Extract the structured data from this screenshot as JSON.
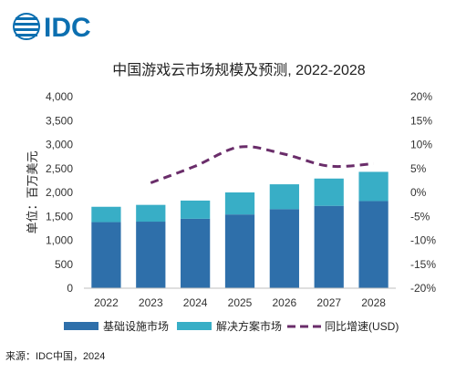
{
  "logo": {
    "text": "IDC",
    "color": "#0c6fb0"
  },
  "colors": {
    "base": "#2e6faa",
    "solution": "#38aec6",
    "growth": "#6a2d6a"
  },
  "source": "来源：IDC中国，2024",
  "chart_data": {
    "type": "bar",
    "stacked": true,
    "title": "中国游戏云市场规模及预测, 2022-2028",
    "ylabel": "单位：百万美元",
    "categories": [
      "2022",
      "2023",
      "2024",
      "2025",
      "2026",
      "2027",
      "2028"
    ],
    "ylim": [
      0,
      4000
    ],
    "yticks": [
      "0",
      "500",
      "1,000",
      "1,500",
      "2,000",
      "2,500",
      "3,000",
      "3,500",
      "4,000"
    ],
    "y2lim": [
      -20,
      20
    ],
    "y2ticks": [
      "-20%",
      "-15%",
      "-10%",
      "-5%",
      "0%",
      "5%",
      "10%",
      "15%",
      "20%"
    ],
    "series": [
      {
        "name": "基础设施市场",
        "type": "bar",
        "axis": "left",
        "values": [
          1380,
          1390,
          1450,
          1540,
          1650,
          1720,
          1820
        ]
      },
      {
        "name": "解决方案市场",
        "type": "bar",
        "axis": "left",
        "values": [
          320,
          350,
          380,
          460,
          520,
          570,
          610
        ]
      },
      {
        "name": "同比增速(USD)",
        "type": "line",
        "style": "dashed",
        "axis": "right",
        "values": [
          null,
          2,
          5.5,
          9.5,
          8,
          5.5,
          6
        ]
      }
    ],
    "legend_position": "bottom",
    "grid": false
  }
}
